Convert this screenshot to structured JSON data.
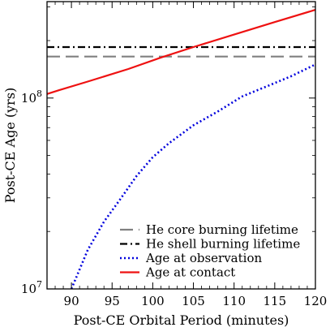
{
  "chart_data": {
    "type": "line",
    "title": "",
    "xlabel": "Post-CE Orbital Period (minutes)",
    "ylabel": "Post-CE Age (yrs)",
    "xlim": [
      87,
      120
    ],
    "ylim": [
      10000000.0,
      320000000.0
    ],
    "yscale": "log",
    "grid": false,
    "legend_position": "lower-right",
    "x_ticks": [
      90,
      95,
      100,
      105,
      110,
      115,
      120
    ],
    "x_tick_labels": [
      "90",
      "95",
      "100",
      "105",
      "110",
      "115",
      "120"
    ],
    "y_ticks": [
      10000000.0,
      100000000.0
    ],
    "y_tick_labels": [
      "10^7",
      "10^8"
    ],
    "series": [
      {
        "name": "He core burning lifetime",
        "style": "dashed",
        "color": "#808080",
        "x": [
          87,
          120
        ],
        "y": [
          165000000.0,
          165000000.0
        ]
      },
      {
        "name": "He shell burning lifetime",
        "style": "dashdot",
        "color": "#000000",
        "x": [
          87,
          120
        ],
        "y": [
          185000000.0,
          185000000.0
        ]
      },
      {
        "name": "Age at observation",
        "style": "dotted",
        "color": "#0000dd",
        "x": [
          90,
          92,
          94,
          96,
          98,
          100,
          102,
          105,
          108,
          111,
          114,
          117,
          120
        ],
        "y": [
          10000000.0,
          16000000.0,
          22500000.0,
          29500000.0,
          39000000.0,
          49000000.0,
          58000000.0,
          72000000.0,
          85000000.0,
          102000000.0,
          115000000.0,
          130000000.0,
          150000000.0
        ]
      },
      {
        "name": "Age at contact",
        "style": "solid",
        "color": "#ee1111",
        "x": [
          87,
          88.5,
          92,
          97,
          101,
          105,
          110,
          115,
          120
        ],
        "y": [
          105000000.0,
          110000000.0,
          122000000.0,
          142000000.0,
          163000000.0,
          185000000.0,
          215000000.0,
          250000000.0,
          290000000.0
        ]
      }
    ]
  }
}
